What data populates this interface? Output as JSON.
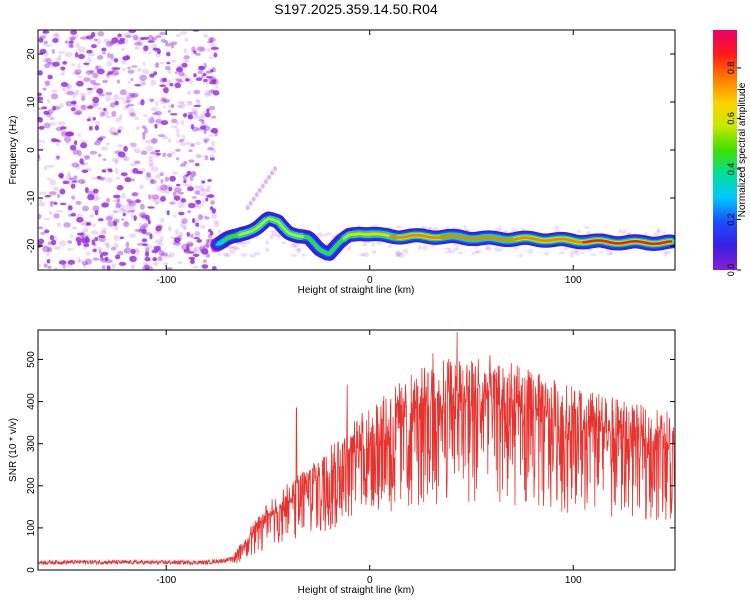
{
  "figure_title": "S197.2025.359.14.50.R04",
  "colors": {
    "snr_line": "#e8322e",
    "axis": "#000000",
    "noise": "#9b2fe0",
    "colormap": [
      "#8a1fd8",
      "#3a1fe0",
      "#1a4dff",
      "#00c8ff",
      "#00e09a",
      "#3ee000",
      "#c8e800",
      "#ffd000",
      "#ff7a00",
      "#ff1a1a",
      "#e8006a"
    ]
  },
  "chart_data": [
    {
      "type": "heatmap",
      "name": "spectrogram",
      "xlabel": "Height of straight line (km)",
      "ylabel": "Frequency (Hz)",
      "xlim": [
        -163,
        150
      ],
      "ylim": [
        -25,
        25
      ],
      "xticks": [
        -100,
        0,
        100
      ],
      "yticks": [
        -20,
        -10,
        0,
        10,
        20
      ],
      "colorbar": {
        "label": "Normalized spectral amplitude",
        "range": [
          0.0,
          0.95
        ],
        "ticks": [
          "0.0",
          "0.2",
          "0.4",
          "0.6",
          "0.8"
        ]
      },
      "noise_region_x": [
        -163,
        -75
      ],
      "signal_track": [
        {
          "x": -75,
          "freq": -19.5,
          "amp": 0.35
        },
        {
          "x": -70,
          "freq": -18.5,
          "amp": 0.5
        },
        {
          "x": -65,
          "freq": -18.0,
          "amp": 0.55
        },
        {
          "x": -60,
          "freq": -17.0,
          "amp": 0.6
        },
        {
          "x": -55,
          "freq": -16.0,
          "amp": 0.6
        },
        {
          "x": -50,
          "freq": -14.5,
          "amp": 0.55
        },
        {
          "x": -45,
          "freq": -15.0,
          "amp": 0.6
        },
        {
          "x": -40,
          "freq": -17.0,
          "amp": 0.6
        },
        {
          "x": -35,
          "freq": -18.0,
          "amp": 0.6
        },
        {
          "x": -30,
          "freq": -18.5,
          "amp": 0.5
        },
        {
          "x": -25,
          "freq": -20.5,
          "amp": 0.45
        },
        {
          "x": -20,
          "freq": -21.5,
          "amp": 0.45
        },
        {
          "x": -15,
          "freq": -19.5,
          "amp": 0.5
        },
        {
          "x": -10,
          "freq": -17.8,
          "amp": 0.65
        },
        {
          "x": -5,
          "freq": -17.2,
          "amp": 0.75
        },
        {
          "x": 0,
          "freq": -17.5,
          "amp": 0.7
        },
        {
          "x": 5,
          "freq": -17.8,
          "amp": 0.7
        },
        {
          "x": 15,
          "freq": -18.0,
          "amp": 0.8
        },
        {
          "x": 30,
          "freq": -18.0,
          "amp": 0.8
        },
        {
          "x": 45,
          "freq": -18.2,
          "amp": 0.75
        },
        {
          "x": 60,
          "freq": -18.5,
          "amp": 0.75
        },
        {
          "x": 75,
          "freq": -18.5,
          "amp": 0.8
        },
        {
          "x": 90,
          "freq": -18.7,
          "amp": 0.8
        },
        {
          "x": 105,
          "freq": -19.0,
          "amp": 0.85
        },
        {
          "x": 120,
          "freq": -19.2,
          "amp": 0.9
        },
        {
          "x": 135,
          "freq": -19.3,
          "amp": 0.9
        },
        {
          "x": 148,
          "freq": -19.3,
          "amp": 0.85
        }
      ]
    },
    {
      "type": "line",
      "name": "snr",
      "xlabel": "Height of straight line (km)",
      "ylabel": "SNR (10 * v/v)",
      "xlim": [
        -163,
        150
      ],
      "ylim": [
        0,
        570
      ],
      "xticks": [
        -100,
        0,
        100
      ],
      "yticks": [
        0,
        100,
        200,
        300,
        400,
        500
      ],
      "envelope": [
        {
          "x": -163,
          "y": 18
        },
        {
          "x": -140,
          "y": 19
        },
        {
          "x": -110,
          "y": 18
        },
        {
          "x": -80,
          "y": 18
        },
        {
          "x": -68,
          "y": 25
        },
        {
          "x": -60,
          "y": 80
        },
        {
          "x": -50,
          "y": 140
        },
        {
          "x": -40,
          "y": 180
        },
        {
          "x": -30,
          "y": 220
        },
        {
          "x": -20,
          "y": 260
        },
        {
          "x": -10,
          "y": 300
        },
        {
          "x": 0,
          "y": 340
        },
        {
          "x": 15,
          "y": 390
        },
        {
          "x": 30,
          "y": 430
        },
        {
          "x": 45,
          "y": 450
        },
        {
          "x": 60,
          "y": 445
        },
        {
          "x": 75,
          "y": 420
        },
        {
          "x": 90,
          "y": 395
        },
        {
          "x": 105,
          "y": 375
        },
        {
          "x": 120,
          "y": 355
        },
        {
          "x": 135,
          "y": 340
        },
        {
          "x": 150,
          "y": 330
        }
      ],
      "spikes": [
        {
          "x": -36,
          "y": 385
        },
        {
          "x": -11,
          "y": 440
        },
        {
          "x": 31,
          "y": 515
        },
        {
          "x": 43,
          "y": 565
        }
      ]
    }
  ]
}
